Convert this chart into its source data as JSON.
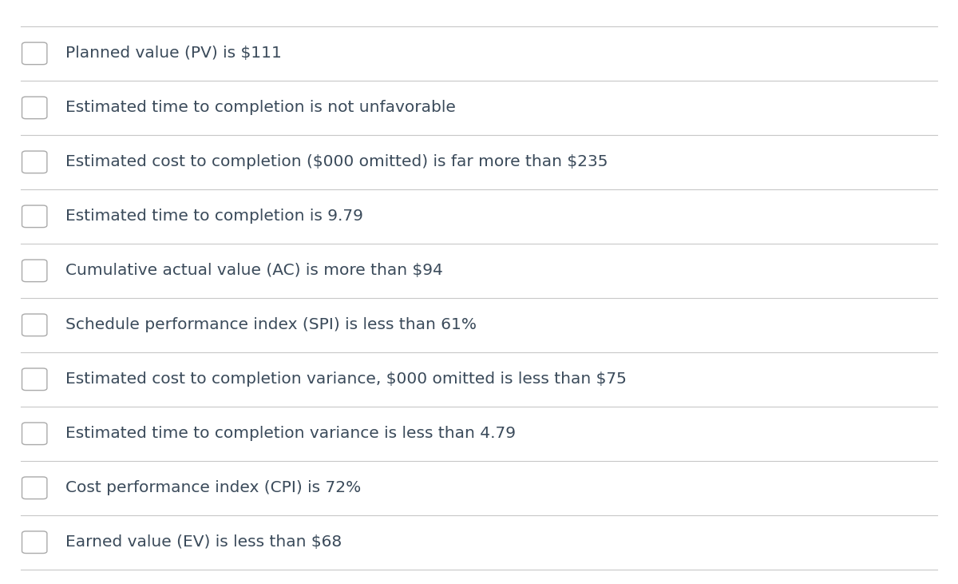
{
  "background_color": "#ffffff",
  "line_color": "#c8c8c8",
  "text_color": "#3a4a5a",
  "checkbox_edge_color": "#aaaaaa",
  "checkbox_fill_color": "#ffffff",
  "font_size": 14.5,
  "items": [
    "Planned value (PV) is $111",
    "Estimated time to completion is not unfavorable",
    "Estimated cost to completion ($000 omitted) is far more than $235",
    "Estimated time to completion is 9.79",
    "Cumulative actual value (AC) is more than $94",
    "Schedule performance index (SPI) is less than 61%",
    "Estimated cost to completion variance, $000 omitted is less than $75",
    "Estimated time to completion variance is less than 4.79",
    "Cost performance index (CPI) is 72%",
    "Earned value (EV) is less than $68"
  ]
}
